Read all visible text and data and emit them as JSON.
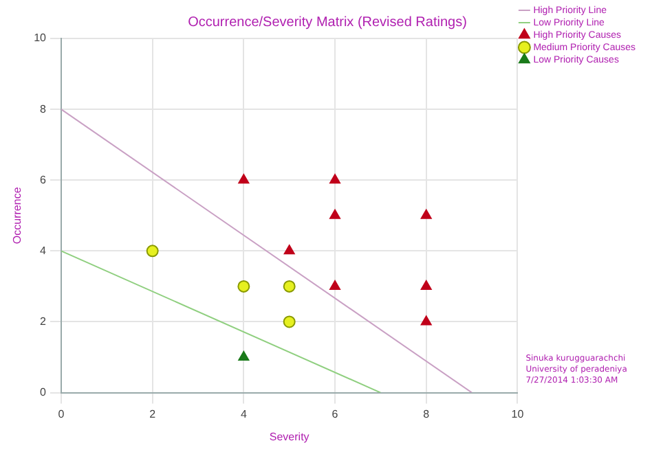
{
  "chart_data": {
    "type": "scatter",
    "title": "Occurrence/Severity Matrix (Revised Ratings)",
    "xlabel": "Severity",
    "ylabel": "Occurrence",
    "xlim": [
      0,
      10
    ],
    "xticks": [
      0,
      2,
      4,
      6,
      8,
      10
    ],
    "ylim": [
      0,
      10
    ],
    "yticks": [
      0,
      2,
      4,
      6,
      8,
      10
    ],
    "grid": true,
    "legend": "top right",
    "series": [
      {
        "name": "High Priority Line",
        "type": "line",
        "color": "#c9a0c4",
        "x": [
          0,
          9
        ],
        "values": [
          8,
          0
        ],
        "marker": "none"
      },
      {
        "name": "Low Priority Line",
        "type": "line",
        "color": "#8fcf7f",
        "x": [
          0,
          7
        ],
        "values": [
          4,
          0
        ],
        "marker": "none"
      },
      {
        "name": "High Priority Causes",
        "type": "scatter",
        "color": "#c0001a",
        "marker": "triangle",
        "x": [
          4,
          6,
          6,
          8,
          5,
          6,
          8,
          8
        ],
        "values": [
          6,
          6,
          5,
          5,
          4,
          3,
          3,
          2
        ]
      },
      {
        "name": "Medium Priority Causes",
        "type": "scatter",
        "color": "#e6f020",
        "marker": "circle",
        "x": [
          2,
          4,
          5,
          5
        ],
        "values": [
          4,
          3,
          3,
          2
        ]
      },
      {
        "name": "Low Priority Causes",
        "type": "scatter",
        "color": "#1a7a1a",
        "marker": "triangle",
        "x": [
          4
        ],
        "values": [
          1
        ]
      }
    ],
    "annotations": [
      "Sinuka kurugguarachchi\nUniversity of peradeniya\n7/27/2014 1:03:30 AM"
    ]
  }
}
